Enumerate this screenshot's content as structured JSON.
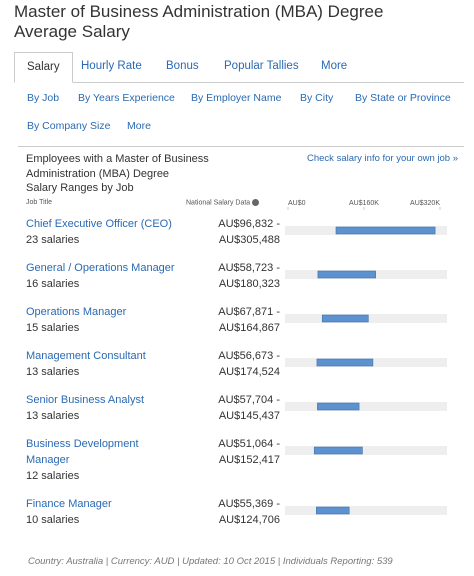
{
  "header": {
    "title": "Master of Business Administration (MBA) Degree Average Salary"
  },
  "tabs": [
    "Salary",
    "Hourly Rate",
    "Bonus",
    "Popular Tallies",
    "More"
  ],
  "subtabs": [
    "By Job",
    "By Years Experience",
    "By Employer Name",
    "By City",
    "By State or Province",
    "By Company Size",
    "More"
  ],
  "panel": {
    "heading": "Employees with a Master of Business Administration (MBA) Degree",
    "subheading": "Salary Ranges by Job",
    "link": "Check salary info for your own job »",
    "column_job": "Job Title",
    "column_salary": "National Salary Data"
  },
  "chart_data": {
    "type": "range-bar",
    "categories": [
      "Chief Executive Officer (CEO)",
      "General / Operations Manager",
      "Operations Manager",
      "Management Consultant",
      "Senior Business Analyst",
      "Business Development Manager",
      "Finance Manager"
    ],
    "counts": [
      "23 salaries",
      "16 salaries",
      "15 salaries",
      "13 salaries",
      "13 salaries",
      "12 salaries",
      "10 salaries"
    ],
    "low": {
      "values": [
        96832,
        58723,
        67871,
        56673,
        57704,
        51064,
        55369
      ],
      "value_labels": [
        "AU$96,832 -",
        "AU$58,723 -",
        "AU$67,871 -",
        "AU$56,673 -",
        "AU$57,704 -",
        "AU$51,064 -",
        "AU$55,369 -"
      ]
    },
    "high": {
      "values": [
        305488,
        180323,
        164867,
        174524,
        145437,
        152417,
        124706
      ],
      "value_labels": [
        "AU$305,488",
        "AU$180,323",
        "AU$164,867",
        "AU$174,524",
        "AU$145,437",
        "AU$152,417",
        "AU$124,706"
      ]
    },
    "xlim": [
      0,
      320000
    ],
    "xticks": [
      {
        "value": 0,
        "label": "AU$0"
      },
      {
        "value": 160000,
        "label": "AU$160K"
      },
      {
        "value": 320000,
        "label": "AU$320K"
      }
    ],
    "color": "#5b92cf"
  },
  "footer": "Country: Australia | Currency: AUD | Updated: 10 Oct 2015 | Individuals Reporting: 539"
}
